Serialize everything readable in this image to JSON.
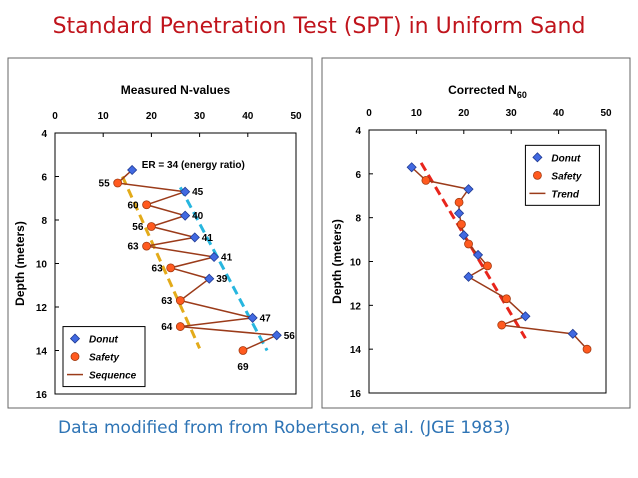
{
  "slide": {
    "title": "Standard Penetration Test (SPT) in Uniform Sand",
    "caption": "Data modified from from Robertson, et al. (JGE 1983)"
  },
  "colors": {
    "title": "#c0141c",
    "caption": "#2e74b5",
    "donut": "#4169e1",
    "safety": "#ff5a1f",
    "line": "#9b3b1a",
    "trend_left_yellow": "#e3ab1a",
    "trend_left_cyan": "#27b6df",
    "trend_right": "#e8251c"
  },
  "chart_data": [
    {
      "type": "line",
      "title": "Measured N-values",
      "ylabel": "Depth (meters)",
      "xlim": [
        0,
        50
      ],
      "ylim": [
        4,
        16
      ],
      "y_inverted": true,
      "x_axis_position": "top",
      "xticks": [
        "0",
        "10",
        "20",
        "30",
        "40",
        "50"
      ],
      "yticks": [
        "4",
        "6",
        "8",
        "10",
        "12",
        "14",
        "16"
      ],
      "grid": false,
      "legend": {
        "position": "bottom-left",
        "entries": [
          "Donut",
          "Safety",
          "Sequence"
        ]
      },
      "annotation": "ER = 34   (energy ratio)",
      "series": [
        {
          "name": "Donut",
          "marker": "diamond",
          "points": [
            [
              16,
              5.7
            ],
            [
              27,
              6.7
            ],
            [
              27,
              7.8
            ],
            [
              29,
              8.8
            ],
            [
              33,
              9.7
            ],
            [
              32,
              10.7
            ],
            [
              41,
              12.5
            ],
            [
              46,
              13.3
            ]
          ]
        },
        {
          "name": "Safety",
          "marker": "circle",
          "points": [
            [
              13,
              6.3
            ],
            [
              19,
              7.3
            ],
            [
              20,
              8.3
            ],
            [
              19,
              9.2
            ],
            [
              24,
              10.2
            ],
            [
              26,
              11.7
            ],
            [
              26,
              12.9
            ],
            [
              39,
              14.0
            ]
          ]
        },
        {
          "name": "Sequence",
          "line": true,
          "points": [
            [
              16,
              5.7
            ],
            [
              13,
              6.3
            ],
            [
              27,
              6.7
            ],
            [
              19,
              7.3
            ],
            [
              27,
              7.8
            ],
            [
              20,
              8.3
            ],
            [
              29,
              8.8
            ],
            [
              19,
              9.2
            ],
            [
              33,
              9.7
            ],
            [
              24,
              10.2
            ],
            [
              32,
              10.7
            ],
            [
              26,
              11.7
            ],
            [
              41,
              12.5
            ],
            [
              26,
              12.9
            ],
            [
              46,
              13.3
            ],
            [
              39,
              14.0
            ]
          ]
        }
      ],
      "trend_lines": [
        {
          "color": "yellow",
          "points": [
            [
              14,
              6.0
            ],
            [
              30,
              13.9
            ]
          ]
        },
        {
          "color": "cyan",
          "points": [
            [
              26,
              6.5
            ],
            [
              44,
              14.0
            ]
          ]
        }
      ],
      "labels": [
        {
          "text": "55",
          "x": 13,
          "y": 6.3,
          "side": "left"
        },
        {
          "text": "45",
          "x": 27,
          "y": 6.7,
          "side": "right"
        },
        {
          "text": "60",
          "x": 19,
          "y": 7.3,
          "side": "left"
        },
        {
          "text": "40",
          "x": 27,
          "y": 7.8,
          "side": "right"
        },
        {
          "text": "56",
          "x": 20,
          "y": 8.3,
          "side": "left"
        },
        {
          "text": "41",
          "x": 29,
          "y": 8.8,
          "side": "right"
        },
        {
          "text": "63",
          "x": 19,
          "y": 9.2,
          "side": "left"
        },
        {
          "text": "41",
          "x": 33,
          "y": 9.7,
          "side": "right"
        },
        {
          "text": "63",
          "x": 24,
          "y": 10.2,
          "side": "left"
        },
        {
          "text": "39",
          "x": 32,
          "y": 10.7,
          "side": "right"
        },
        {
          "text": "63",
          "x": 26,
          "y": 11.7,
          "side": "left"
        },
        {
          "text": "47",
          "x": 41,
          "y": 12.5,
          "side": "right"
        },
        {
          "text": "64",
          "x": 26,
          "y": 12.9,
          "side": "left"
        },
        {
          "text": "56",
          "x": 46,
          "y": 13.3,
          "side": "right"
        },
        {
          "text": "69",
          "x": 39,
          "y": 14.0,
          "side": "below"
        }
      ]
    },
    {
      "type": "line",
      "title": "Corrected N",
      "title_subscript": "60",
      "ylabel": "Depth (meters)",
      "xlim": [
        0,
        50
      ],
      "ylim": [
        4,
        16
      ],
      "y_inverted": true,
      "x_axis_position": "top",
      "xticks": [
        "0",
        "10",
        "20",
        "30",
        "40",
        "50"
      ],
      "yticks": [
        "4",
        "6",
        "8",
        "10",
        "12",
        "14",
        "16"
      ],
      "grid": false,
      "legend": {
        "position": "top-right",
        "entries": [
          "Donut",
          "Safety",
          "Trend"
        ]
      },
      "series": [
        {
          "name": "Donut",
          "marker": "diamond",
          "points": [
            [
              9,
              5.7
            ],
            [
              21,
              6.7
            ],
            [
              19,
              7.8
            ],
            [
              20,
              8.8
            ],
            [
              23,
              9.7
            ],
            [
              21,
              10.7
            ],
            [
              33,
              12.5
            ],
            [
              43,
              13.3
            ]
          ]
        },
        {
          "name": "Safety",
          "marker": "circle",
          "points": [
            [
              12,
              6.3
            ],
            [
              19,
              7.3
            ],
            [
              19.5,
              8.3
            ],
            [
              21,
              9.2
            ],
            [
              25,
              10.2
            ],
            [
              29,
              11.7
            ],
            [
              28,
              12.9
            ],
            [
              46,
              14.0
            ]
          ]
        },
        {
          "name": "Trend",
          "line": true,
          "points": [
            [
              9,
              5.7
            ],
            [
              12,
              6.3
            ],
            [
              21,
              6.7
            ],
            [
              19,
              7.3
            ],
            [
              19,
              7.8
            ],
            [
              19.5,
              8.3
            ],
            [
              20,
              8.8
            ],
            [
              21,
              9.2
            ],
            [
              23,
              9.7
            ],
            [
              25,
              10.2
            ],
            [
              21,
              10.7
            ],
            [
              29,
              11.7
            ],
            [
              33,
              12.5
            ],
            [
              28,
              12.9
            ],
            [
              43,
              13.3
            ],
            [
              46,
              14.0
            ]
          ]
        }
      ],
      "trend_lines": [
        {
          "color": "red",
          "points": [
            [
              11,
              5.5
            ],
            [
              33,
              13.5
            ]
          ]
        }
      ]
    }
  ]
}
